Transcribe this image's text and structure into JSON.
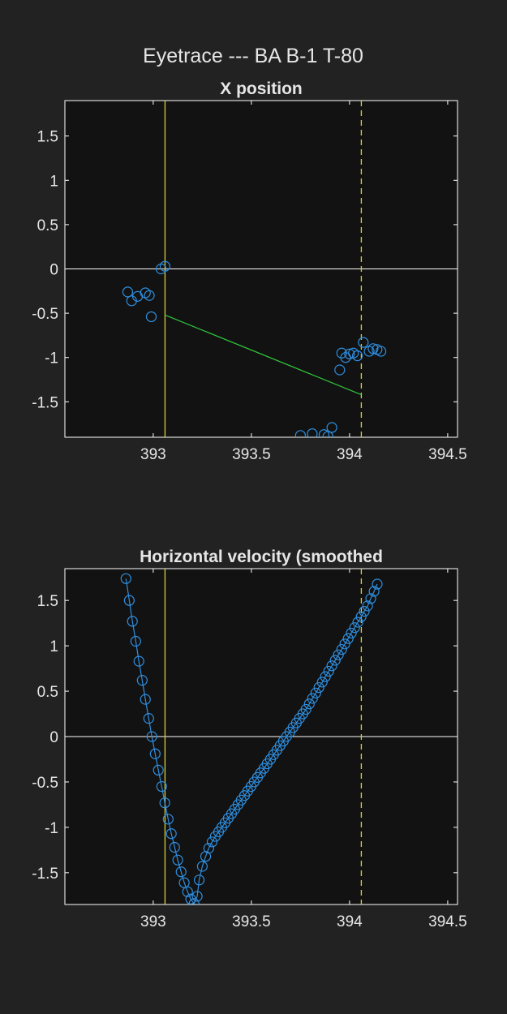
{
  "figure_title": "Eyetrace --- BA B-1 T-80",
  "colors": {
    "background": "#222222",
    "axes_background": "#121212",
    "marker": "#2f8fe0",
    "event_line": "#d8cf39",
    "fit_line": "#2fc93a",
    "zero_line": "#ffffff",
    "text": "#e6e6e6"
  },
  "chart_data": [
    {
      "type": "scatter",
      "title": "X position",
      "xlabel": "",
      "ylabel": "",
      "xlim": [
        392.55,
        394.55
      ],
      "ylim": [
        -1.9,
        1.9
      ],
      "grid": false,
      "xticks": [
        393,
        393.5,
        394,
        394.5
      ],
      "xtick_labels": [
        "393",
        "393.5",
        "394",
        "394.5"
      ],
      "yticks": [
        1.5,
        1,
        0.5,
        0,
        -0.5,
        -1,
        -1.5
      ],
      "ytick_labels": [
        "1.5",
        "1",
        "0.5",
        "0",
        "-0.5",
        "-1",
        "-1.5"
      ],
      "events": {
        "solid_x": 393.06,
        "dashed_x": 394.06
      },
      "fit_line": {
        "x": [
          393.06,
          394.06
        ],
        "y": [
          -0.52,
          -1.42
        ]
      },
      "series": [
        {
          "name": "samples",
          "marker": "circle",
          "x": [
            392.87,
            392.89,
            392.92,
            392.96,
            392.98,
            392.99,
            393.04,
            393.06,
            393.75,
            393.81,
            393.87,
            393.89,
            393.91,
            393.95,
            393.96,
            393.98,
            394.0,
            394.02,
            394.04,
            394.07,
            394.1,
            394.12,
            394.14,
            394.16
          ],
          "y": [
            -0.26,
            -0.36,
            -0.31,
            -0.27,
            -0.3,
            -0.54,
            0.0,
            0.03,
            -1.88,
            -1.86,
            -1.87,
            -1.89,
            -1.79,
            -1.14,
            -0.95,
            -1.0,
            -0.96,
            -0.95,
            -0.98,
            -0.83,
            -0.93,
            -0.9,
            -0.91,
            -0.93
          ]
        }
      ]
    },
    {
      "type": "line",
      "title": "Horizontal velocity (smoothed",
      "xlabel": "",
      "ylabel": "",
      "xlim": [
        392.55,
        394.55
      ],
      "ylim": [
        -1.85,
        1.85
      ],
      "grid": false,
      "xticks": [
        393,
        393.5,
        394,
        394.5
      ],
      "xtick_labels": [
        "393",
        "393.5",
        "394",
        "394.5"
      ],
      "yticks": [
        1.5,
        1,
        0.5,
        0,
        -0.5,
        -1,
        -1.5
      ],
      "ytick_labels": [
        "1.5",
        "1",
        "0.5",
        "0",
        "-0.5",
        "-1",
        "-1.5"
      ],
      "events": {
        "solid_x": 393.06,
        "dashed_x": 394.06
      },
      "series": [
        {
          "name": "velocity",
          "marker": "circle",
          "line": true,
          "x": [
            392.861,
            392.878,
            392.894,
            392.911,
            392.927,
            392.944,
            392.96,
            392.977,
            392.993,
            393.01,
            393.026,
            393.043,
            393.059,
            393.076,
            393.092,
            393.109,
            393.125,
            393.142,
            393.158,
            393.175,
            393.191,
            393.208,
            393.224,
            393.234,
            393.25,
            393.267,
            393.283,
            393.3,
            393.316,
            393.333,
            393.349,
            393.366,
            393.382,
            393.399,
            393.415,
            393.432,
            393.448,
            393.465,
            393.481,
            393.498,
            393.514,
            393.531,
            393.547,
            393.564,
            393.58,
            393.597,
            393.613,
            393.63,
            393.646,
            393.663,
            393.679,
            393.696,
            393.712,
            393.729,
            393.745,
            393.762,
            393.778,
            393.795,
            393.811,
            393.828,
            393.844,
            393.861,
            393.877,
            393.894,
            393.91,
            393.927,
            393.943,
            393.96,
            393.976,
            393.993,
            394.009,
            394.026,
            394.042,
            394.059,
            394.075,
            394.092,
            394.108,
            394.125,
            394.141
          ],
          "y": [
            1.74,
            1.5,
            1.27,
            1.05,
            0.83,
            0.62,
            0.41,
            0.2,
            0.0,
            -0.19,
            -0.37,
            -0.55,
            -0.73,
            -0.91,
            -1.07,
            -1.22,
            -1.36,
            -1.49,
            -1.61,
            -1.71,
            -1.79,
            -1.84,
            -1.76,
            -1.58,
            -1.43,
            -1.32,
            -1.23,
            -1.16,
            -1.1,
            -1.05,
            -1.0,
            -0.95,
            -0.9,
            -0.85,
            -0.8,
            -0.75,
            -0.7,
            -0.65,
            -0.6,
            -0.55,
            -0.5,
            -0.45,
            -0.4,
            -0.35,
            -0.3,
            -0.25,
            -0.2,
            -0.15,
            -0.1,
            -0.05,
            0.0,
            0.05,
            0.1,
            0.15,
            0.2,
            0.25,
            0.3,
            0.36,
            0.42,
            0.48,
            0.54,
            0.6,
            0.66,
            0.72,
            0.78,
            0.84,
            0.9,
            0.96,
            1.02,
            1.08,
            1.14,
            1.2,
            1.26,
            1.32,
            1.38,
            1.44,
            1.52,
            1.6,
            1.68
          ]
        }
      ]
    }
  ]
}
